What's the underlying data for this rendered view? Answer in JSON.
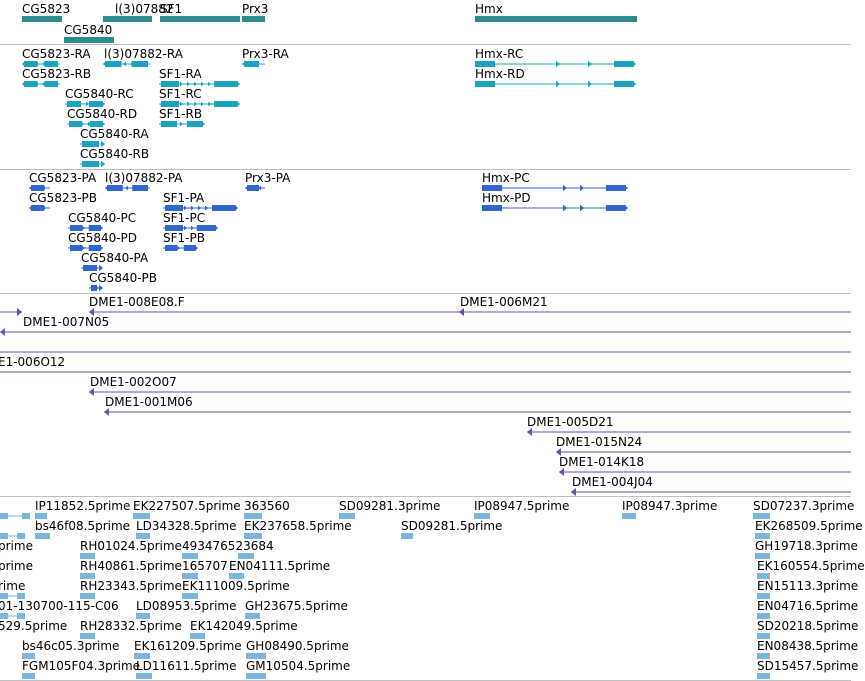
{
  "colors": {
    "gene": "#2e8b8b",
    "transcript": "#1fa3bd",
    "cds": "#3366cc",
    "clone": "#6a4ea8",
    "est": "#7eb6d9",
    "separator": "#bfbfbf"
  },
  "genes": [
    "CG5823",
    "l(3)07882",
    "SF1",
    "Prx3",
    "CG5840",
    "Hmx"
  ],
  "transcripts": [
    "CG5823-RA",
    "l(3)07882-RA",
    "Prx3-RA",
    "CG5823-RB",
    "SF1-RA",
    "CG5840-RC",
    "SF1-RC",
    "CG5840-RD",
    "SF1-RB",
    "CG5840-RA",
    "CG5840-RB",
    "Hmx-RC",
    "Hmx-RD"
  ],
  "polypeptides": [
    "CG5823-PA",
    "l(3)07882-PA",
    "Prx3-PA",
    "CG5823-PB",
    "SF1-PA",
    "CG5840-PC",
    "SF1-PC",
    "CG5840-PD",
    "SF1-PB",
    "CG5840-PA",
    "CG5840-PB",
    "Hmx-PC",
    "Hmx-PD"
  ],
  "clones": [
    "DME1-008E08.F",
    "DME1-006M21",
    "DME1-007N05",
    "E1-006O12",
    "DME1-002O07",
    "DME1-001M06",
    "DME1-005D21",
    "DME1-015N24",
    "DME1-014K18",
    "DME1-004J04"
  ],
  "ests": [
    "IP11852.5prime",
    "EK227507.5prime",
    "363560",
    "SD09281.3prime",
    "IP08947.5prime",
    "IP08947.3prime",
    "SD07237.3prime",
    "bs46f08.5prime",
    "LD34328.5prime",
    "EK237658.5prime",
    "SD09281.5prime",
    "EK268509.5prime",
    "prime",
    "RH01024.5prime",
    "493476523684",
    "GH19718.3prime",
    "prime",
    "RH40861.5prime",
    "165707",
    "EN04111.5prime",
    "EK160554.5prime",
    "rime",
    "RH23343.5prime",
    "EK111009.5prime",
    "EN15113.3prime",
    "01-130700-115-C06",
    "LD08953.5prime",
    "GH23675.5prime",
    "EN04716.5prime",
    "529.5prime",
    "RH28332.5prime",
    "EK142049.5prime",
    "SD20218.5prime",
    "bs46c05.3prime",
    "EK161209.5prime",
    "GH08490.5prime",
    "EN08438.5prime",
    "FGM105F04.3prime",
    "LD11611.5prime",
    "GM10504.5prime",
    "SD15457.5prime"
  ]
}
